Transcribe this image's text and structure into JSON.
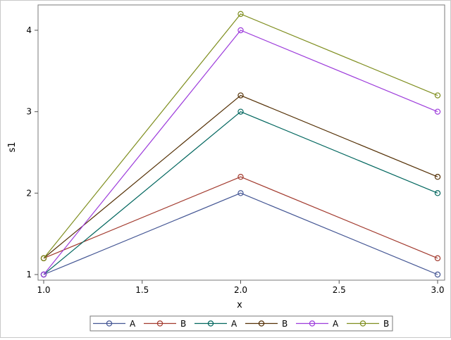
{
  "chart_data": {
    "type": "line",
    "title": "",
    "xlabel": "x",
    "ylabel": "s1",
    "xlim": [
      1.0,
      3.0
    ],
    "ylim": [
      1,
      4.2
    ],
    "x_ticks": [
      "1.0",
      "1.5",
      "2.0",
      "2.5",
      "3.0"
    ],
    "y_ticks": [
      "1",
      "2",
      "3",
      "4"
    ],
    "grid": false,
    "legend_position": "bottom",
    "marker": "circle",
    "x": [
      1,
      2,
      3
    ],
    "series": [
      {
        "name": "A",
        "color": "#445694",
        "values": [
          1.0,
          2.0,
          1.0
        ]
      },
      {
        "name": "B",
        "color": "#A23A2E",
        "values": [
          1.2,
          2.2,
          1.2
        ]
      },
      {
        "name": "A",
        "color": "#01665E",
        "values": [
          1.0,
          3.0,
          2.0
        ]
      },
      {
        "name": "B",
        "color": "#543005",
        "values": [
          1.2,
          3.2,
          2.2
        ]
      },
      {
        "name": "A",
        "color": "#9D3CDB",
        "values": [
          1.0,
          4.0,
          3.0
        ]
      },
      {
        "name": "B",
        "color": "#7F8E1F",
        "values": [
          1.2,
          4.2,
          3.2
        ]
      }
    ]
  }
}
